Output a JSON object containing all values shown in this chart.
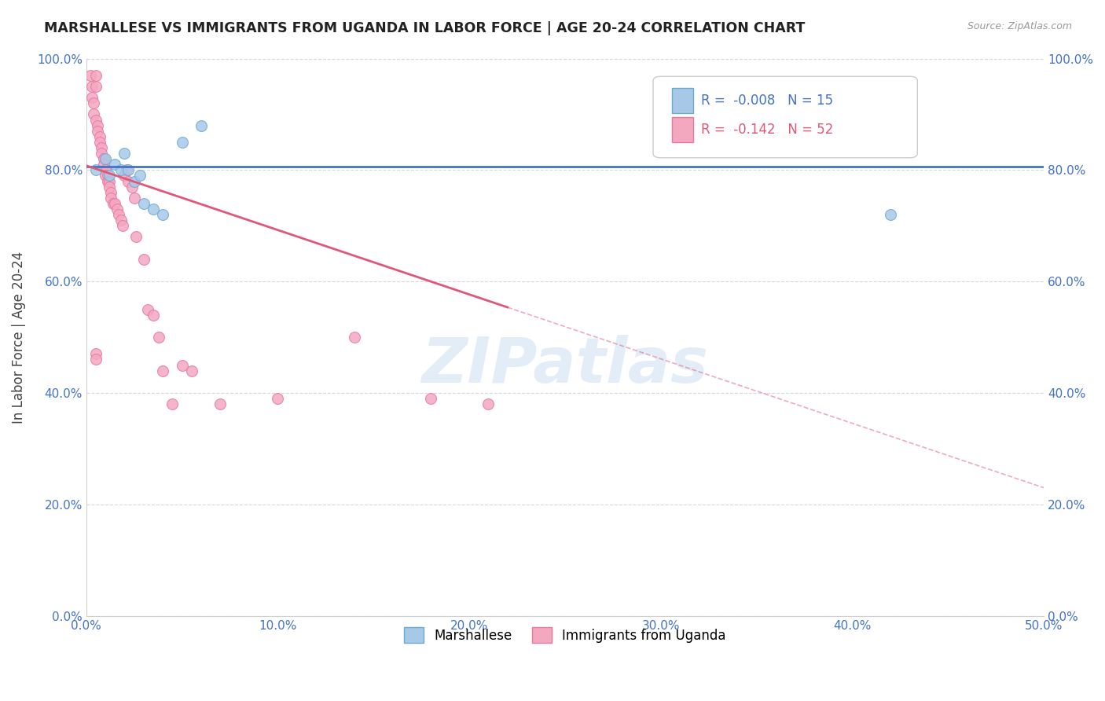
{
  "title": "MARSHALLESE VS IMMIGRANTS FROM UGANDA IN LABOR FORCE | AGE 20-24 CORRELATION CHART",
  "source": "Source: ZipAtlas.com",
  "ylabel": "In Labor Force | Age 20-24",
  "xlim": [
    0.0,
    0.5
  ],
  "ylim": [
    0.0,
    1.0
  ],
  "xtick_labels": [
    "0.0%",
    "10.0%",
    "20.0%",
    "30.0%",
    "40.0%",
    "50.0%"
  ],
  "xtick_vals": [
    0.0,
    0.1,
    0.2,
    0.3,
    0.4,
    0.5
  ],
  "ytick_labels": [
    "0.0%",
    "20.0%",
    "40.0%",
    "60.0%",
    "80.0%",
    "100.0%"
  ],
  "ytick_vals": [
    0.0,
    0.2,
    0.4,
    0.6,
    0.8,
    1.0
  ],
  "blue_color": "#a8c8e8",
  "pink_color": "#f4a8c0",
  "blue_edge": "#6aaad4",
  "pink_edge": "#e878a0",
  "blue_line_color": "#4472c4",
  "pink_line_color": "#e05878",
  "legend_blue_R": "-0.008",
  "legend_blue_N": "15",
  "legend_pink_R": "-0.142",
  "legend_pink_N": "52",
  "blue_scatter_x": [
    0.005,
    0.01,
    0.012,
    0.015,
    0.018,
    0.02,
    0.022,
    0.025,
    0.028,
    0.03,
    0.035,
    0.04,
    0.05,
    0.06,
    0.42
  ],
  "blue_scatter_y": [
    0.8,
    0.82,
    0.79,
    0.81,
    0.8,
    0.83,
    0.8,
    0.78,
    0.79,
    0.74,
    0.73,
    0.72,
    0.85,
    0.88,
    0.72
  ],
  "pink_scatter_x": [
    0.002,
    0.003,
    0.003,
    0.004,
    0.004,
    0.005,
    0.005,
    0.005,
    0.006,
    0.006,
    0.007,
    0.007,
    0.008,
    0.008,
    0.009,
    0.009,
    0.01,
    0.01,
    0.01,
    0.011,
    0.011,
    0.012,
    0.012,
    0.013,
    0.013,
    0.014,
    0.015,
    0.016,
    0.017,
    0.018,
    0.019,
    0.02,
    0.021,
    0.022,
    0.024,
    0.025,
    0.026,
    0.03,
    0.032,
    0.035,
    0.038,
    0.04,
    0.045,
    0.05,
    0.055,
    0.07,
    0.1,
    0.14,
    0.005,
    0.005,
    0.18,
    0.21
  ],
  "pink_scatter_y": [
    0.97,
    0.95,
    0.93,
    0.92,
    0.9,
    0.97,
    0.95,
    0.89,
    0.88,
    0.87,
    0.86,
    0.85,
    0.84,
    0.83,
    0.82,
    0.81,
    0.8,
    0.8,
    0.79,
    0.79,
    0.78,
    0.78,
    0.77,
    0.76,
    0.75,
    0.74,
    0.74,
    0.73,
    0.72,
    0.71,
    0.7,
    0.79,
    0.8,
    0.78,
    0.77,
    0.75,
    0.68,
    0.64,
    0.55,
    0.54,
    0.5,
    0.44,
    0.38,
    0.45,
    0.44,
    0.38,
    0.39,
    0.5,
    0.47,
    0.46,
    0.39,
    0.38
  ],
  "background_color": "#ffffff",
  "watermark_text": "ZIPatlas",
  "marker_size": 100,
  "blue_trend_y0": 0.806,
  "blue_trend_y1": 0.806,
  "pink_trend_x0": 0.0,
  "pink_trend_y0": 0.808,
  "pink_trend_x1": 0.5,
  "pink_trend_y1": 0.23
}
